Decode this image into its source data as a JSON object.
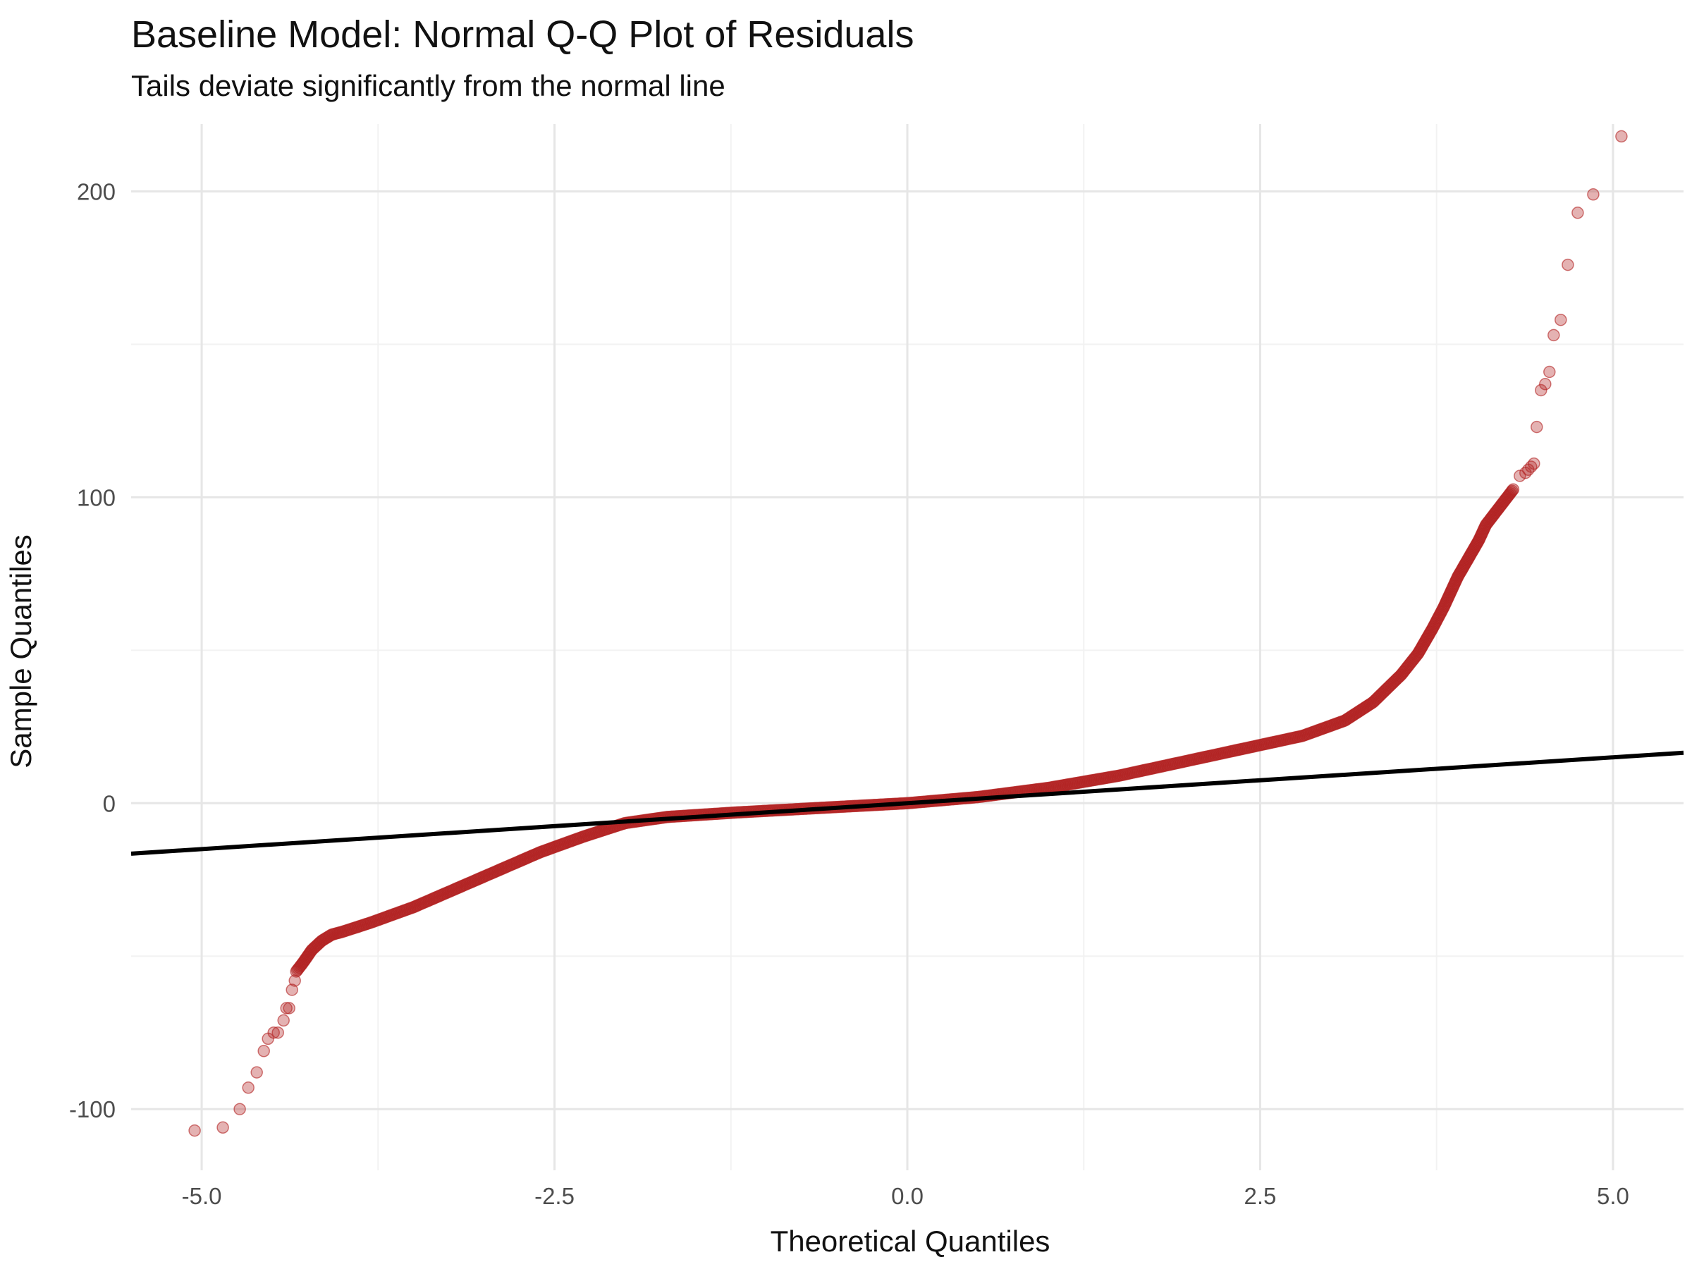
{
  "title": "Baseline Model: Normal Q-Q Plot of Residuals",
  "subtitle": "Tails deviate significantly from the normal line",
  "chart_data": {
    "type": "scatter",
    "title": "Baseline Model: Normal Q-Q Plot of Residuals",
    "subtitle": "Tails deviate significantly from the normal line",
    "xlabel": "Theoretical Quantiles",
    "ylabel": "Sample Quantiles",
    "xlim": [
      -5.5,
      5.5
    ],
    "ylim": [
      -120,
      222
    ],
    "x_ticks": [
      -5.0,
      -2.5,
      0.0,
      2.5,
      5.0
    ],
    "x_tick_labels": [
      "-5.0",
      "-2.5",
      "0.0",
      "2.5",
      "5.0"
    ],
    "y_ticks": [
      -100,
      0,
      100,
      200
    ],
    "y_tick_labels": [
      "-100",
      "0",
      "100",
      "200"
    ],
    "grid": true,
    "point_color": "#b22222",
    "line_color": "#000000",
    "reference_line": {
      "slope": 3.0,
      "intercept": 0
    },
    "outlier_points": {
      "x": [
        -5.05,
        -4.85,
        -4.73,
        -4.67,
        -4.61,
        -4.56,
        -4.53,
        -4.49,
        -4.46,
        -4.42,
        -4.4,
        -4.38,
        -4.36,
        -4.34,
        4.34,
        4.38,
        4.4,
        4.42,
        4.44,
        4.46,
        4.49,
        4.52,
        4.55,
        4.58,
        4.63,
        4.68,
        4.75,
        4.86,
        5.06
      ],
      "y": [
        -107,
        -106,
        -100,
        -93,
        -88,
        -81,
        -77,
        -75,
        -75,
        -71,
        -67,
        -67,
        -61,
        -58,
        107,
        108,
        109,
        110,
        111,
        123,
        135,
        137,
        141,
        153,
        158,
        176,
        193,
        199,
        218
      ]
    },
    "series": [
      {
        "x": [
          -4.33,
          -4.28,
          -4.22,
          -4.15,
          -4.08,
          -4.0,
          -3.8,
          -3.5,
          -3.2,
          -2.9,
          -2.6,
          -2.3,
          -2.0,
          -1.7,
          -1.2,
          -0.6,
          0.0,
          0.5,
          1.0,
          1.5,
          2.0,
          2.4,
          2.8,
          3.1,
          3.3,
          3.5,
          3.62,
          3.72,
          3.8,
          3.85,
          3.9,
          3.95,
          4.0,
          4.05,
          4.08,
          4.1,
          4.15,
          4.2,
          4.25,
          4.3
        ],
        "y": [
          -55,
          -52,
          -48,
          -45,
          -43,
          -42,
          -39,
          -34,
          -28,
          -22,
          -16,
          -11,
          -6.5,
          -4.5,
          -3,
          -1.5,
          0,
          2,
          5,
          9,
          14,
          18,
          22,
          27,
          33,
          42,
          49,
          57,
          64,
          69,
          74,
          78,
          82,
          86,
          89,
          91,
          94,
          97,
          100,
          103
        ]
      }
    ]
  }
}
